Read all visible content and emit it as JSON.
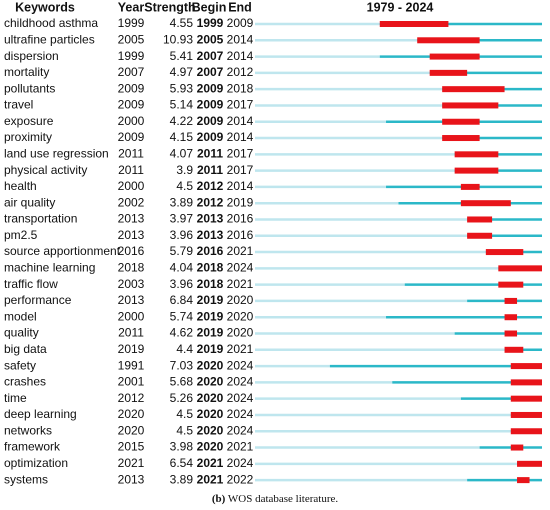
{
  "chart_data": {
    "type": "burst",
    "title": "1979 - 2024",
    "headers": {
      "keyword": "Keywords",
      "year": "Year",
      "strength": "Strength",
      "begin": "Begin",
      "end": "End"
    },
    "xlim": [
      1979,
      2024
    ],
    "colors": {
      "before": "#bfe6ee",
      "active": "#2bb8c8",
      "burst": "#e8141a"
    },
    "rows": [
      {
        "keyword": "childhood asthma",
        "year": 1999,
        "strength": 4.55,
        "begin": 1999,
        "end": 2009
      },
      {
        "keyword": "ultrafine particles",
        "year": 2005,
        "strength": 10.93,
        "begin": 2005,
        "end": 2014
      },
      {
        "keyword": "dispersion",
        "year": 1999,
        "strength": 5.41,
        "begin": 2007,
        "end": 2014
      },
      {
        "keyword": "mortality",
        "year": 2007,
        "strength": 4.97,
        "begin": 2007,
        "end": 2012
      },
      {
        "keyword": "pollutants",
        "year": 2009,
        "strength": 5.93,
        "begin": 2009,
        "end": 2018
      },
      {
        "keyword": "travel",
        "year": 2009,
        "strength": 5.14,
        "begin": 2009,
        "end": 2017
      },
      {
        "keyword": "exposure",
        "year": 2000,
        "strength": 4.22,
        "begin": 2009,
        "end": 2014
      },
      {
        "keyword": "proximity",
        "year": 2009,
        "strength": 4.15,
        "begin": 2009,
        "end": 2014
      },
      {
        "keyword": "land use regression",
        "year": 2011,
        "strength": 4.07,
        "begin": 2011,
        "end": 2017
      },
      {
        "keyword": "physical activity",
        "year": 2011,
        "strength": 3.9,
        "begin": 2011,
        "end": 2017
      },
      {
        "keyword": "health",
        "year": 2000,
        "strength": 4.5,
        "begin": 2012,
        "end": 2014
      },
      {
        "keyword": "air quality",
        "year": 2002,
        "strength": 3.89,
        "begin": 2012,
        "end": 2019
      },
      {
        "keyword": "transportation",
        "year": 2013,
        "strength": 3.97,
        "begin": 2013,
        "end": 2016
      },
      {
        "keyword": "pm2.5",
        "year": 2013,
        "strength": 3.96,
        "begin": 2013,
        "end": 2016
      },
      {
        "keyword": "source apportionment",
        "year": 2016,
        "strength": 5.79,
        "begin": 2016,
        "end": 2021
      },
      {
        "keyword": "machine learning",
        "year": 2018,
        "strength": 4.04,
        "begin": 2018,
        "end": 2024
      },
      {
        "keyword": "traffic flow",
        "year": 2003,
        "strength": 3.96,
        "begin": 2018,
        "end": 2021
      },
      {
        "keyword": "performance",
        "year": 2013,
        "strength": 6.84,
        "begin": 2019,
        "end": 2020
      },
      {
        "keyword": "model",
        "year": 2000,
        "strength": 5.74,
        "begin": 2019,
        "end": 2020
      },
      {
        "keyword": "quality",
        "year": 2011,
        "strength": 4.62,
        "begin": 2019,
        "end": 2020
      },
      {
        "keyword": "big data",
        "year": 2019,
        "strength": 4.4,
        "begin": 2019,
        "end": 2021
      },
      {
        "keyword": "safety",
        "year": 1991,
        "strength": 7.03,
        "begin": 2020,
        "end": 2024
      },
      {
        "keyword": "crashes",
        "year": 2001,
        "strength": 5.68,
        "begin": 2020,
        "end": 2024
      },
      {
        "keyword": "time",
        "year": 2012,
        "strength": 5.26,
        "begin": 2020,
        "end": 2024
      },
      {
        "keyword": "deep learning",
        "year": 2020,
        "strength": 4.5,
        "begin": 2020,
        "end": 2024
      },
      {
        "keyword": "networks",
        "year": 2020,
        "strength": 4.5,
        "begin": 2020,
        "end": 2024
      },
      {
        "keyword": "framework",
        "year": 2015,
        "strength": 3.98,
        "begin": 2020,
        "end": 2021
      },
      {
        "keyword": "optimization",
        "year": 2021,
        "strength": 6.54,
        "begin": 2021,
        "end": 2024
      },
      {
        "keyword": "systems",
        "year": 2013,
        "strength": 3.89,
        "begin": 2021,
        "end": 2022
      }
    ],
    "caption_label": "(b)",
    "caption": "WOS database literature."
  }
}
